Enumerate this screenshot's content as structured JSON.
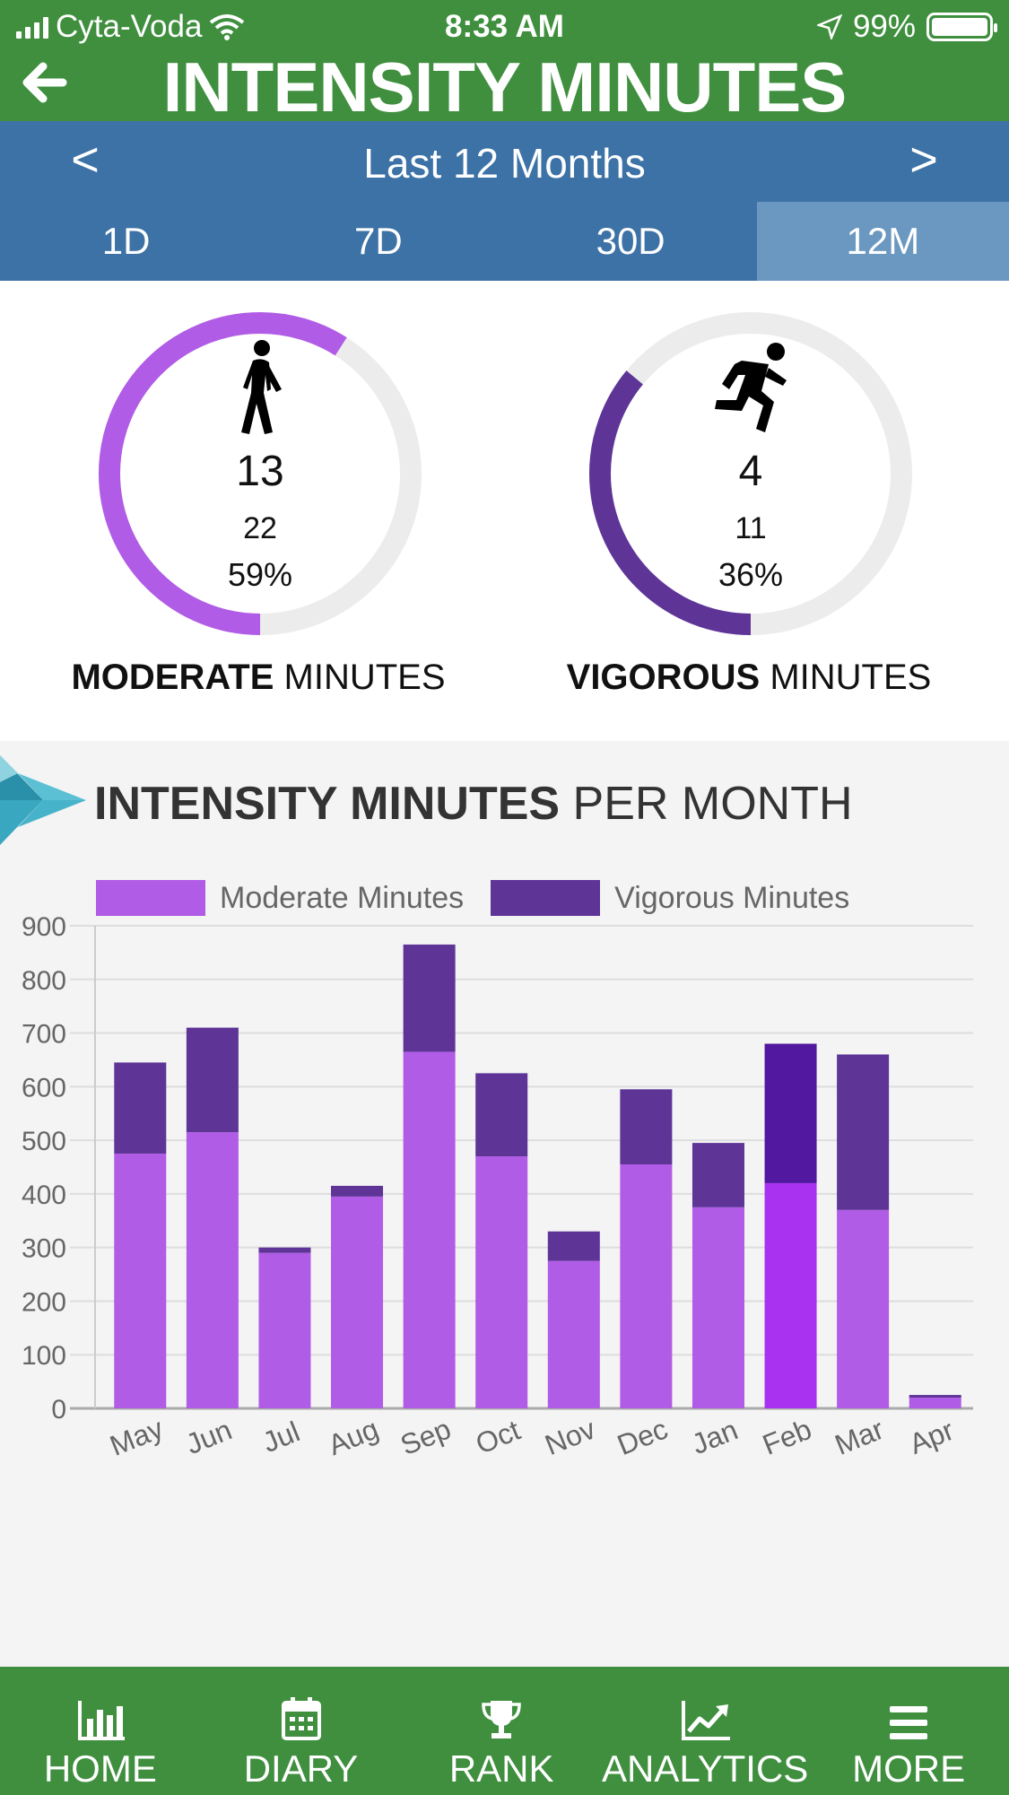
{
  "status_bar": {
    "carrier": "Cyta-Voda",
    "time": "8:33 AM",
    "battery": "99%"
  },
  "header": {
    "title": "INTENSITY MINUTES"
  },
  "period": {
    "prev": "<",
    "label": "Last 12 Months",
    "next": ">"
  },
  "tabs": [
    {
      "label": "1D"
    },
    {
      "label": "7D"
    },
    {
      "label": "30D"
    },
    {
      "label": "12M",
      "active": true
    }
  ],
  "rings": {
    "moderate": {
      "value": "13",
      "secondary": "22",
      "percent_text": "59%",
      "percent": 0.59,
      "title_bold": "MODERATE",
      "title_rest": " MINUTES",
      "color": "#b05ce6"
    },
    "vigorous": {
      "value": "4",
      "secondary": "11",
      "percent_text": "36%",
      "percent": 0.36,
      "title_bold": "VIGOROUS",
      "title_rest": " MINUTES",
      "color": "#5e3597"
    }
  },
  "chart_heading": {
    "bold": "INTENSITY MINUTES",
    "rest": " PER MONTH"
  },
  "chart_data": {
    "type": "bar",
    "stacked": true,
    "categories": [
      "May",
      "Jun",
      "Jul",
      "Aug",
      "Sep",
      "Oct",
      "Nov",
      "Dec",
      "Jan",
      "Feb",
      "Mar",
      "Apr"
    ],
    "series": [
      {
        "name": "Moderate Minutes",
        "color": "#b05ce6",
        "values": [
          475,
          515,
          290,
          395,
          665,
          470,
          275,
          455,
          375,
          420,
          370,
          20
        ]
      },
      {
        "name": "Vigorous Minutes",
        "color": "#5e3597",
        "values": [
          170,
          195,
          10,
          20,
          200,
          155,
          55,
          140,
          120,
          260,
          290,
          5
        ]
      }
    ],
    "highlight_index": 9,
    "highlight_colors": {
      "Moderate Minutes": "#a932f0",
      "Vigorous Minutes": "#5219a0"
    },
    "yticks": [
      0,
      100,
      200,
      300,
      400,
      500,
      600,
      700,
      800,
      900
    ],
    "ylim": [
      0,
      900
    ],
    "grid": true,
    "legend_position": "top"
  },
  "bottom_nav": [
    {
      "label": "HOME",
      "icon": "bar-chart-icon"
    },
    {
      "label": "DIARY",
      "icon": "calendar-icon"
    },
    {
      "label": "RANK",
      "icon": "trophy-icon"
    },
    {
      "label": "ANALYTICS",
      "icon": "trend-icon"
    },
    {
      "label": "MORE",
      "icon": "menu-icon"
    }
  ]
}
